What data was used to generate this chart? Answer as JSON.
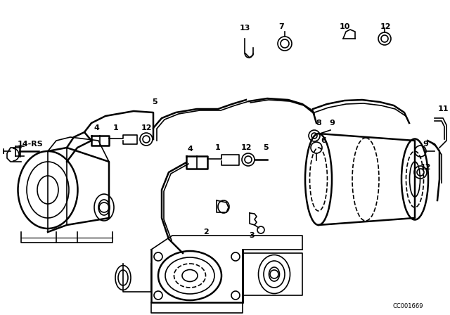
{
  "bg_color": "#ffffff",
  "line_color": "#000000",
  "fig_width": 6.4,
  "fig_height": 4.48,
  "dpi": 100,
  "watermark": "CC001669",
  "label_fs": 8,
  "label_fw": "bold"
}
